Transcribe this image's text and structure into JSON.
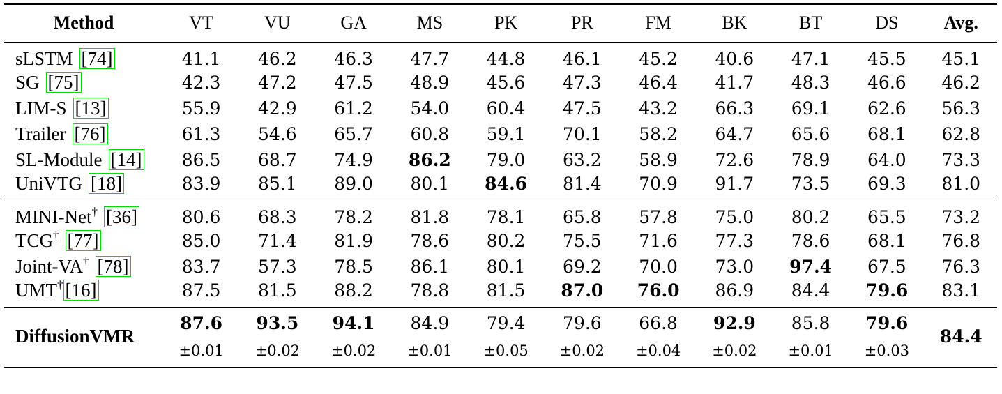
{
  "columns": [
    "Method",
    "VT",
    "VU",
    "GA",
    "MS",
    "PK",
    "PR",
    "FM",
    "BK",
    "BT",
    "DS",
    "Avg."
  ],
  "group1": [
    {
      "method": "sLSTM",
      "dagger": "",
      "ref": "74",
      "values": [
        "41.1",
        "46.2",
        "46.3",
        "47.7",
        "44.8",
        "46.1",
        "45.2",
        "40.6",
        "47.1",
        "45.5",
        "45.1"
      ],
      "bold": []
    },
    {
      "method": "SG",
      "dagger": "",
      "ref": "75",
      "values": [
        "42.3",
        "47.2",
        "47.5",
        "48.9",
        "45.6",
        "47.3",
        "46.4",
        "41.7",
        "48.3",
        "46.6",
        "46.2"
      ],
      "bold": []
    },
    {
      "method": "LIM-S",
      "dagger": "",
      "ref": "13",
      "values": [
        "55.9",
        "42.9",
        "61.2",
        "54.0",
        "60.4",
        "47.5",
        "43.2",
        "66.3",
        "69.1",
        "62.6",
        "56.3"
      ],
      "bold": []
    },
    {
      "method": "Trailer",
      "dagger": "",
      "ref": "76",
      "values": [
        "61.3",
        "54.6",
        "65.7",
        "60.8",
        "59.1",
        "70.1",
        "58.2",
        "64.7",
        "65.6",
        "68.1",
        "62.8"
      ],
      "bold": []
    },
    {
      "method": "SL-Module",
      "dagger": "",
      "ref": "14",
      "values": [
        "86.5",
        "68.7",
        "74.9",
        "86.2",
        "79.0",
        "63.2",
        "58.9",
        "72.6",
        "78.9",
        "64.0",
        "73.3"
      ],
      "bold": [
        3
      ]
    },
    {
      "method": "UniVTG",
      "dagger": "",
      "ref": "18",
      "values": [
        "83.9",
        "85.1",
        "89.0",
        "80.1",
        "84.6",
        "81.4",
        "70.9",
        "91.7",
        "73.5",
        "69.3",
        "81.0"
      ],
      "bold": [
        4
      ]
    }
  ],
  "group2": [
    {
      "method": "MINI-Net",
      "dagger": "†",
      "ref": "36",
      "values": [
        "80.6",
        "68.3",
        "78.2",
        "81.8",
        "78.1",
        "65.8",
        "57.8",
        "75.0",
        "80.2",
        "65.5",
        "73.2"
      ],
      "bold": []
    },
    {
      "method": "TCG",
      "dagger": "†",
      "ref": "77",
      "values": [
        "85.0",
        "71.4",
        "81.9",
        "78.6",
        "80.2",
        "75.5",
        "71.6",
        "77.3",
        "78.6",
        "68.1",
        "76.8"
      ],
      "bold": []
    },
    {
      "method": "Joint-VA",
      "dagger": "†",
      "ref": "78",
      "values": [
        "83.7",
        "57.3",
        "78.5",
        "86.1",
        "80.1",
        "69.2",
        "70.0",
        "73.0",
        "97.4",
        "67.5",
        "76.3"
      ],
      "bold": [
        8
      ]
    },
    {
      "method": "UMT",
      "dagger": "†",
      "ref": "16",
      "values": [
        "87.5",
        "81.5",
        "88.2",
        "78.8",
        "81.5",
        "87.0",
        "76.0",
        "86.9",
        "84.4",
        "79.6",
        "83.1"
      ],
      "bold": [
        5,
        6,
        9
      ]
    }
  ],
  "ours": {
    "method": "DiffusionVMR",
    "means": [
      "87.6",
      "93.5",
      "94.1",
      "84.9",
      "79.4",
      "79.6",
      "66.8",
      "92.9",
      "85.8",
      "79.6"
    ],
    "stds": [
      "±0.01",
      "±0.02",
      "±0.02",
      "±0.01",
      "±0.05",
      "±0.02",
      "±0.04",
      "±0.02",
      "±0.01",
      "±0.03"
    ],
    "bold": [
      0,
      1,
      2,
      7,
      9
    ],
    "avg": "84.4"
  }
}
